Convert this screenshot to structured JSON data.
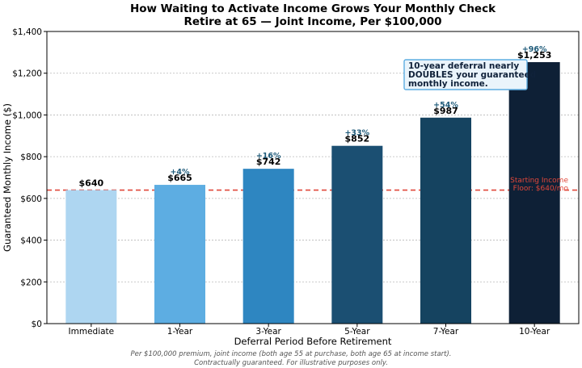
{
  "chart_data": {
    "type": "bar",
    "title": "How Waiting to Activate Income Grows Your Monthly Check",
    "subtitle": "Retire at 65 — Joint Income, Per $100,000",
    "xlabel": "Deferral Period Before Retirement",
    "ylabel": "Guaranteed Monthly Income ($)",
    "ylim": [
      0,
      1400
    ],
    "yticks": [
      0,
      200,
      400,
      600,
      800,
      1000,
      1200,
      1400
    ],
    "ytick_labels": [
      "$0",
      "$200",
      "$400",
      "$600",
      "$800",
      "$1,000",
      "$1,200",
      "$1,400"
    ],
    "grid": true,
    "categories": [
      "Immediate",
      "1-Year",
      "3-Year",
      "5-Year",
      "7-Year",
      "10-Year"
    ],
    "values": [
      640,
      665,
      742,
      852,
      987,
      1253
    ],
    "value_labels": [
      "$640",
      "$665",
      "$742",
      "$852",
      "$987",
      "$1,253"
    ],
    "pct_labels": [
      "",
      "+4%",
      "+16%",
      "+33%",
      "+54%",
      "+96%"
    ],
    "colors": [
      "#aed6f1",
      "#5dade2",
      "#2e86c1",
      "#1b4f72",
      "#154360",
      "#0e2036"
    ],
    "reference_line": {
      "value": 640,
      "color": "#e0473a",
      "label_line1": "Starting Income",
      "label_line2": "Floor: $640/mo"
    },
    "annotation": {
      "lines": [
        "10-year deferral nearly",
        "DOUBLES your guaranteed",
        "monthly income."
      ],
      "border_color": "#5dade2",
      "fill_color": "#eaf4fb"
    },
    "footnote": [
      "Per $100,000 premium, joint income (both age 55 at purchase, both age 65 at income start).",
      "Contractually guaranteed. For illustrative purposes only."
    ]
  }
}
